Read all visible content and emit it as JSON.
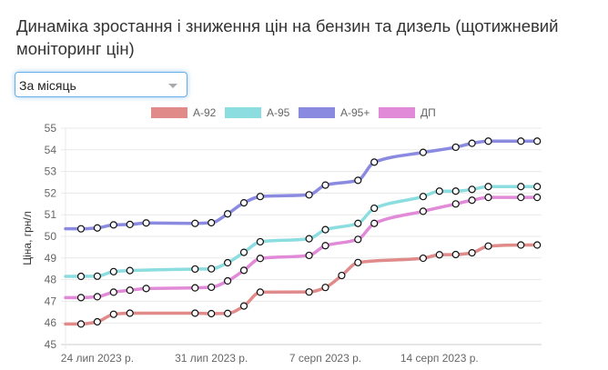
{
  "header": {
    "title": "Динаміка зростання і зниження цін на бензин та дизель (щотижневий моніторинг цін)"
  },
  "period_select": {
    "selected": "За місяць",
    "icon": "chevron-down-icon"
  },
  "legend": [
    {
      "label": "А-92",
      "color": "#e08a8a"
    },
    {
      "label": "А-95",
      "color": "#8cdde0"
    },
    {
      "label": "А-95+",
      "color": "#8a8ae0"
    },
    {
      "label": "ДП",
      "color": "#e08ad8"
    }
  ],
  "chart_data": {
    "type": "line",
    "title": "",
    "xlabel": "",
    "ylabel": "Ціна, грн/л",
    "ylim": [
      45,
      55
    ],
    "yticks": [
      45,
      46,
      47,
      48,
      49,
      50,
      51,
      52,
      53,
      54,
      55
    ],
    "xtick_labels": [
      {
        "label": "24 лип 2023 р.",
        "day": 1
      },
      {
        "label": "31 лип 2023 р.",
        "day": 8
      },
      {
        "label": "7 серп 2023 р.",
        "day": 15
      },
      {
        "label": "14 серп 2023 р.",
        "day": 22
      }
    ],
    "grid": true,
    "legend_position": "top",
    "x": [
      "23.07.2023",
      "24.07.2023",
      "25.07.2023",
      "26.07.2023",
      "27.07.2023",
      "30.07.2023",
      "31.07.2023",
      "01.08.2023",
      "02.08.2023",
      "03.08.2023",
      "06.08.2023",
      "07.08.2023",
      "08.08.2023",
      "09.08.2023",
      "10.08.2023",
      "13.08.2023",
      "14.08.2023",
      "15.08.2023",
      "16.08.2023",
      "17.08.2023",
      "19.08.2023",
      "20.08.2023"
    ],
    "x_days": [
      0,
      1,
      2,
      3,
      4,
      7,
      8,
      9,
      10,
      11,
      14,
      15,
      16,
      17,
      18,
      21,
      22,
      23,
      24,
      25,
      27,
      28
    ],
    "series": [
      {
        "name": "А-92",
        "color": "#e08a8a",
        "values": [
          45.95,
          46.05,
          46.4,
          46.45,
          null,
          46.45,
          46.43,
          46.44,
          46.78,
          47.42,
          47.43,
          47.64,
          48.19,
          48.79,
          null,
          48.99,
          49.15,
          49.16,
          49.24,
          49.55,
          49.6,
          49.6
        ]
      },
      {
        "name": "А-95",
        "color": "#8cdde0",
        "values": [
          48.15,
          48.16,
          48.37,
          48.42,
          null,
          48.49,
          48.5,
          48.78,
          49.26,
          49.75,
          49.89,
          50.31,
          null,
          50.6,
          51.3,
          51.84,
          52.09,
          52.09,
          52.17,
          52.3,
          52.3,
          52.3
        ]
      },
      {
        "name": "А-95+",
        "color": "#8a8ae0",
        "values": [
          50.35,
          50.39,
          50.53,
          50.55,
          50.62,
          50.6,
          50.63,
          51.04,
          51.55,
          51.84,
          51.92,
          52.37,
          null,
          52.59,
          53.43,
          53.88,
          null,
          54.12,
          54.3,
          54.4,
          54.4,
          54.4
        ]
      },
      {
        "name": "ДП",
        "color": "#e08ad8",
        "values": [
          47.17,
          47.21,
          47.42,
          47.51,
          47.59,
          47.62,
          47.65,
          47.94,
          48.43,
          48.98,
          49.12,
          49.57,
          null,
          49.86,
          50.6,
          51.16,
          null,
          51.5,
          51.67,
          51.8,
          51.8,
          51.8
        ]
      }
    ]
  }
}
